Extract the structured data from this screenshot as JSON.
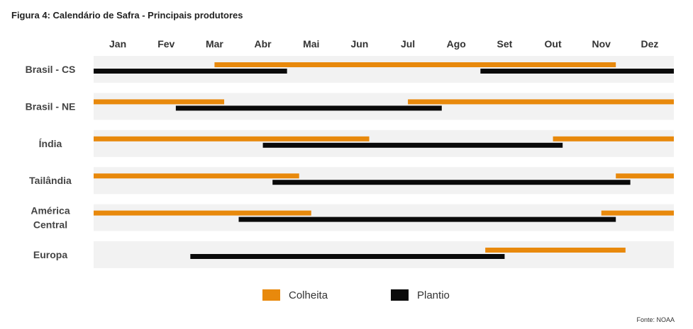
{
  "title": "Figura 4: Calendário de Safra - Principais produtores",
  "source": "Fonte: NOAA",
  "colors": {
    "colheita": "#E8890C",
    "plantio": "#0A0A0A",
    "row_band": "#F2F2F2"
  },
  "chart_data": {
    "type": "bar",
    "months": [
      "Jan",
      "Fev",
      "Mar",
      "Abr",
      "Mai",
      "Jun",
      "Jul",
      "Ago",
      "Set",
      "Out",
      "Nov",
      "Dez"
    ],
    "legend": [
      "Colheita",
      "Plantio"
    ],
    "rows": [
      {
        "label": [
          "Brasil - CS"
        ],
        "colheita": [
          [
            2.5,
            10.8
          ]
        ],
        "plantio": [
          [
            0.0,
            4.0
          ],
          [
            8.0,
            12.0
          ]
        ]
      },
      {
        "label": [
          "Brasil - NE"
        ],
        "colheita": [
          [
            0.0,
            2.7
          ],
          [
            6.5,
            12.0
          ]
        ],
        "plantio": [
          [
            1.7,
            7.2
          ]
        ]
      },
      {
        "label": [
          "Índia"
        ],
        "colheita": [
          [
            0.0,
            5.7
          ],
          [
            9.5,
            12.0
          ]
        ],
        "plantio": [
          [
            3.5,
            9.7
          ]
        ]
      },
      {
        "label": [
          "Tailândia"
        ],
        "colheita": [
          [
            0.0,
            4.25
          ],
          [
            10.8,
            12.0
          ]
        ],
        "plantio": [
          [
            3.7,
            11.1
          ]
        ]
      },
      {
        "label": [
          "América",
          "Central"
        ],
        "colheita": [
          [
            0.0,
            4.5
          ],
          [
            10.5,
            12.0
          ]
        ],
        "plantio": [
          [
            3.0,
            10.8
          ]
        ]
      },
      {
        "label": [
          "Europa"
        ],
        "colheita": [
          [
            8.1,
            11.0
          ]
        ],
        "plantio": [
          [
            2.0,
            8.5
          ]
        ]
      }
    ]
  }
}
